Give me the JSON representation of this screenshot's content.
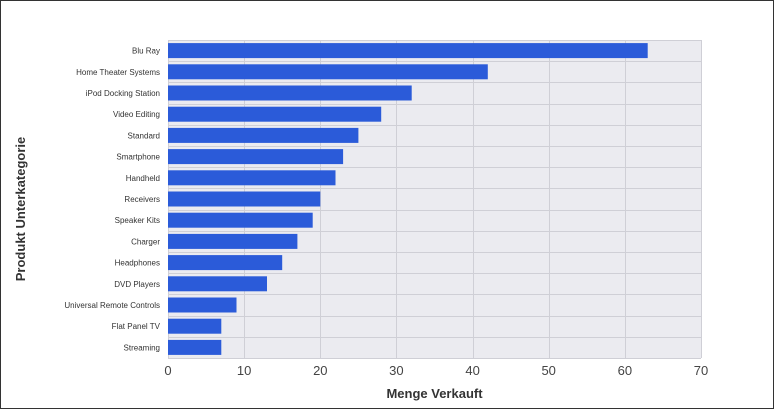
{
  "chart_data": {
    "type": "bar",
    "orientation": "horizontal",
    "title": "",
    "xlabel": "Menge Verkauft",
    "ylabel": "Produkt Unterkategorie",
    "xlim": [
      0,
      70
    ],
    "xticks": [
      0,
      10,
      20,
      30,
      40,
      50,
      60,
      70
    ],
    "grid": true,
    "legend": "none",
    "colors": {
      "bar": "#2b5bd9",
      "plot_bg": "#ebebf0",
      "grid": "#cfcfd6"
    },
    "categories": [
      "Blu Ray",
      "Home Theater Systems",
      "iPod Docking Station",
      "Video Editing",
      "Standard",
      "Smartphone",
      "Handheld",
      "Receivers",
      "Speaker Kits",
      "Charger",
      "Headphones",
      "DVD Players",
      "Universal Remote Controls",
      "Flat Panel TV",
      "Streaming"
    ],
    "values": [
      63,
      42,
      32,
      28,
      25,
      23,
      22,
      20,
      19,
      17,
      15,
      13,
      9,
      7,
      7
    ]
  }
}
